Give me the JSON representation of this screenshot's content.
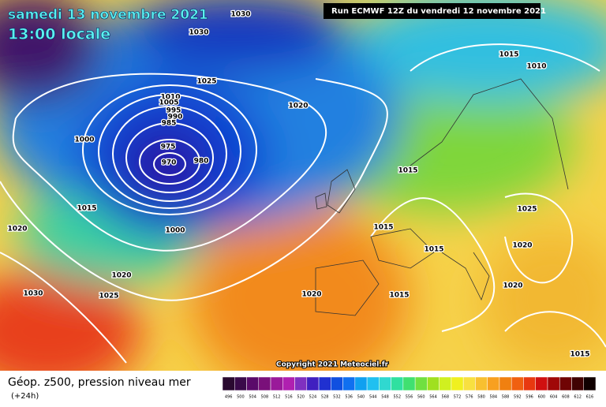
{
  "header": {
    "date": "samedi 13 novembre 2021",
    "time": "13:00 locale",
    "run": "Run ECMWF 12Z du vendredi 12 novembre 2021"
  },
  "map": {
    "copyright": "Copyright 2021 Meteociel.fr",
    "isobar_labels": [
      "1030",
      "1030",
      "1025",
      "1020",
      "1010",
      "1005",
      "995",
      "990",
      "985",
      "975",
      "970",
      "980",
      "1000",
      "1015",
      "1000",
      "1020",
      "1020",
      "1025",
      "1030",
      "1020",
      "1015",
      "1015",
      "1015",
      "1015",
      "1015",
      "1010",
      "1025",
      "1020",
      "1020",
      "1015"
    ]
  },
  "footer": {
    "title": "Géop. z500, pression niveau mer",
    "lead": "(+24h)",
    "scale": [
      "496",
      "500",
      "504",
      "508",
      "512",
      "516",
      "520",
      "524",
      "528",
      "532",
      "536",
      "540",
      "544",
      "548",
      "552",
      "556",
      "560",
      "564",
      "568",
      "572",
      "576",
      "580",
      "584",
      "588",
      "592",
      "596",
      "600",
      "604",
      "608",
      "612",
      "616"
    ]
  }
}
